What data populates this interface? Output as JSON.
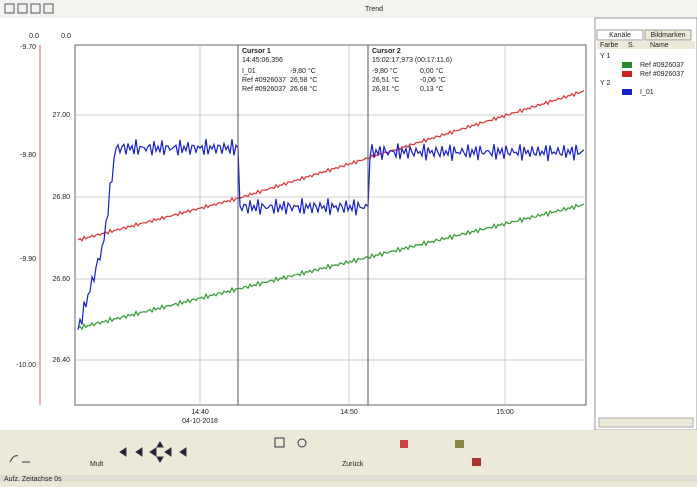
{
  "window": {
    "title": "Trend"
  },
  "axes": {
    "outer_header": "0.0",
    "inner_header": "0.0",
    "outer_ticks": [
      "-9.70",
      "-9.80",
      "-9.90",
      "-10.00"
    ],
    "inner_ticks": [
      "27.00",
      "26.80",
      "26.60",
      "26.40"
    ],
    "x_ticks": [
      "14:40",
      "14:50",
      "15:00"
    ],
    "date": "04-10-2018"
  },
  "cursors": [
    {
      "title": "Cursor 1",
      "time": "14:45:06,356",
      "rows": [
        [
          "I_01",
          "-9,80 °C"
        ],
        [
          "Ref #0926037",
          "26,58 °C"
        ],
        [
          "Ref #0926037",
          "26,68 °C"
        ]
      ]
    },
    {
      "title": "Cursor 2",
      "time": "15:02:17,973 (00:17:11,6)",
      "rows": [
        [
          "-9,80 °C",
          "0,00 °C"
        ],
        [
          "26,51 °C",
          "-0,06 °C"
        ],
        [
          "26,81 °C",
          "0,13 °C"
        ]
      ]
    }
  ],
  "panel": {
    "tabs": [
      "Kanäle",
      "Bildmarken"
    ],
    "columns": [
      "Farbe",
      "S.",
      "Name"
    ],
    "tree": [
      {
        "group": "Y 1",
        "items": [
          "Ref #0926037",
          "Ref #0926037"
        ]
      },
      {
        "group": "Y 2",
        "items": [
          "I_01"
        ]
      }
    ]
  },
  "toolbar": {
    "labels": [
      "Mult",
      "Zurück"
    ]
  },
  "status": "Aufz. Zeitachse 0s"
}
